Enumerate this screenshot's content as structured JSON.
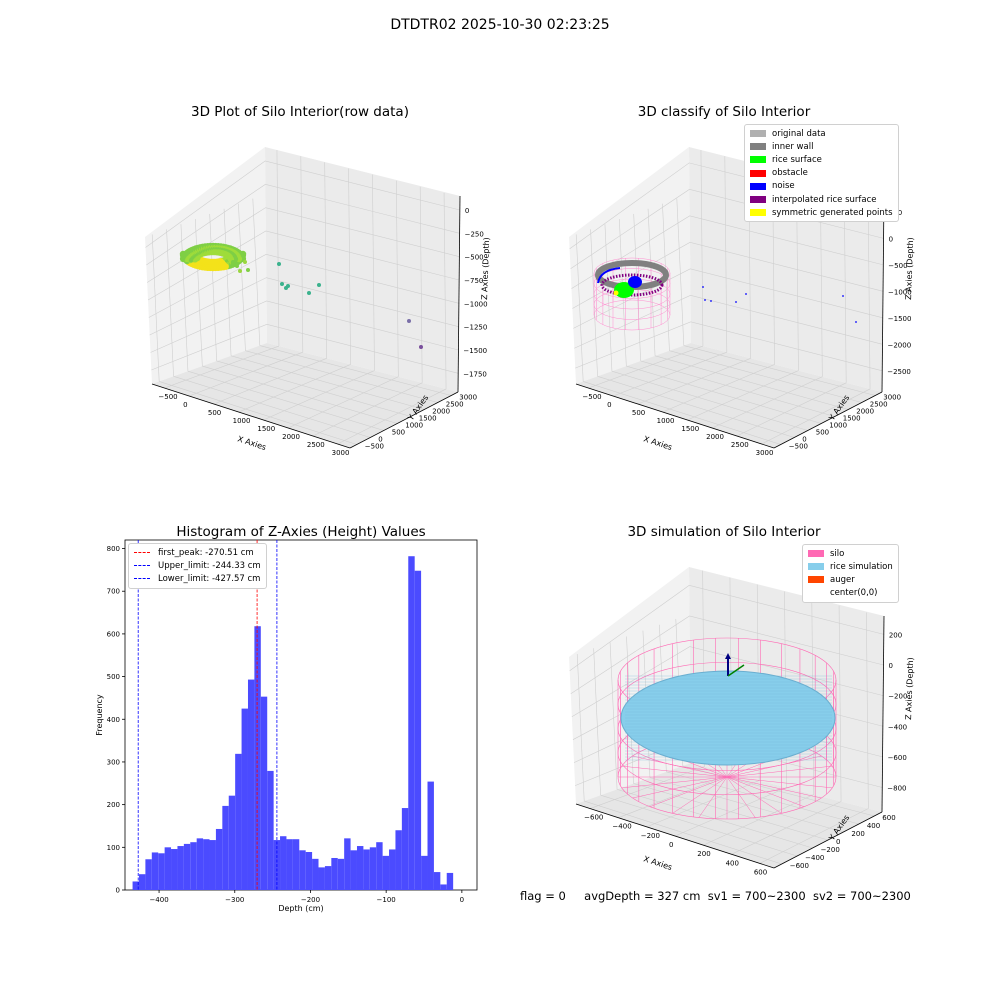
{
  "figure": {
    "suptitle": "DTDTR02 2025-10-30 02:23:25",
    "footer": {
      "flag": "flag = 0",
      "avg_depth": "avgDepth = 327 cm",
      "sv1": "sv1 = 700~2300",
      "sv2": "sv2 = 700~2300"
    }
  },
  "chart_data": [
    {
      "type": "scatter",
      "projection": "3d",
      "title": "3D Plot of Silo Interior(row data)",
      "xlabel": "X Axies",
      "ylabel": "Y Axies",
      "zlabel": "Z Axies (Depth)",
      "x_ticks": [
        "−500",
        "0",
        "500",
        "1000",
        "1500",
        "2000",
        "2500",
        "3000"
      ],
      "y_ticks": [
        "−500",
        "0",
        "500",
        "1000",
        "1500",
        "2000",
        "2500",
        "3000"
      ],
      "z_ticks": [
        "0",
        "−250",
        "−500",
        "−750",
        "−1000",
        "−1250",
        "−1500",
        "−1750"
      ],
      "clusters": [
        {
          "name": "",
          "color": "#9ad63f",
          "desc_points": [
            [
              0,
              0,
              -300
            ]
          ]
        }
      ],
      "outliers": [
        [
          1050,
          250,
          -880
        ],
        [
          1100,
          300,
          -1080
        ],
        [
          1150,
          350,
          -1150
        ],
        [
          1250,
          400,
          -1050
        ],
        [
          1400,
          600,
          -1300
        ],
        [
          1550,
          700,
          -1100
        ],
        [
          2600,
          1900,
          -1400
        ],
        [
          3000,
          2800,
          -1700
        ]
      ]
    },
    {
      "type": "scatter",
      "projection": "3d",
      "title": "3D classify of Silo Interior",
      "xlabel": "X Axies",
      "ylabel": "Y Axies",
      "zlabel": "Z Axies (Depth)",
      "x_ticks": [
        "−500",
        "0",
        "500",
        "1000",
        "1500",
        "2000",
        "2500",
        "3000"
      ],
      "y_ticks": [
        "−500",
        "0",
        "500",
        "1000",
        "1500",
        "2000",
        "2500",
        "3000"
      ],
      "z_ticks": [
        "500",
        "0",
        "−500",
        "−1000",
        "−1500",
        "−2000",
        "−2500"
      ],
      "legend": [
        {
          "label": "original data",
          "color": "#b0b0b0"
        },
        {
          "label": "inner wall",
          "color": "#808080"
        },
        {
          "label": "rice surface",
          "color": "#00ff00"
        },
        {
          "label": "obstacle",
          "color": "#ff0000"
        },
        {
          "label": "noise",
          "color": "#0000ff"
        },
        {
          "label": "interpolated rice surface",
          "color": "#800080"
        },
        {
          "label": "symmetric generated points",
          "color": "#ffff00"
        }
      ],
      "legend_position": "top-right"
    },
    {
      "type": "bar",
      "title": "Histogram of Z-Axies (Height) Values",
      "xlabel": "Depth (cm)",
      "ylabel": "Frequency",
      "xlim": [
        -445,
        20
      ],
      "ylim": [
        0,
        820
      ],
      "x_ticks": [
        -400,
        -300,
        -200,
        -100,
        0
      ],
      "x_tick_labels": [
        "−400",
        "−300",
        "−200",
        "−100",
        "0"
      ],
      "y_ticks": [
        0,
        100,
        200,
        300,
        400,
        500,
        600,
        700,
        800
      ],
      "bar_color": "#4b4bff",
      "bin_edges_start": -435,
      "bin_width": 8.47,
      "values": [
        20,
        37,
        72,
        88,
        86,
        100,
        96,
        103,
        108,
        112,
        121,
        119,
        117,
        143,
        197,
        221,
        319,
        425,
        493,
        618,
        453,
        279,
        117,
        126,
        119,
        119,
        93,
        89,
        73,
        53,
        56,
        75,
        73,
        121,
        93,
        103,
        95,
        100,
        112,
        80,
        95,
        140,
        192,
        782,
        748,
        80,
        254,
        42,
        13,
        40
      ],
      "reference_lines": [
        {
          "label": "first_peak: -270.51 cm",
          "x": -270.51,
          "color": "#ff0000"
        },
        {
          "label": "Upper_limit: -244.33 cm",
          "x": -244.33,
          "color": "#0000ff"
        },
        {
          "label": "Lower_limit: -427.57 cm",
          "x": -427.57,
          "color": "#0000ff"
        }
      ],
      "legend_position": "top-left"
    },
    {
      "type": "scatter",
      "projection": "3d",
      "title": "3D simulation of Silo Interior",
      "xlabel": "X Axies",
      "ylabel": "Y Axies",
      "zlabel": "Z Axies (Depth)",
      "x_ticks": [
        "−600",
        "−400",
        "−200",
        "0",
        "200",
        "400",
        "600"
      ],
      "y_ticks": [
        "−600",
        "−400",
        "−200",
        "0",
        "200",
        "400",
        "600"
      ],
      "z_ticks": [
        "200",
        "0",
        "−200",
        "−400",
        "−600",
        "−800"
      ],
      "legend": [
        {
          "label": "silo",
          "color": "#ff69b4"
        },
        {
          "label": "rice simulation",
          "color": "#87ceeb"
        },
        {
          "label": "auger",
          "color": "#ff4500"
        },
        {
          "label": "center(0,0)",
          "color": "#ffffff"
        }
      ],
      "legend_position": "top-right"
    }
  ]
}
